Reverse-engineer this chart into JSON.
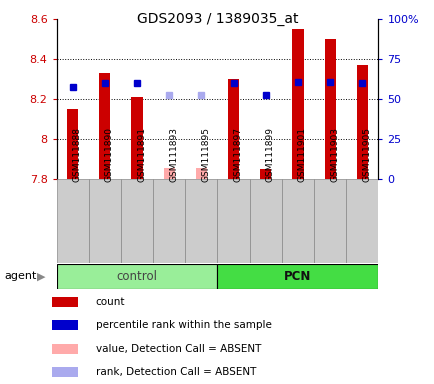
{
  "title": "GDS2093 / 1389035_at",
  "samples": [
    "GSM111888",
    "GSM111890",
    "GSM111891",
    "GSM111893",
    "GSM111895",
    "GSM111897",
    "GSM111899",
    "GSM111901",
    "GSM111903",
    "GSM111905"
  ],
  "count_values": [
    8.15,
    8.33,
    8.21,
    null,
    null,
    8.3,
    7.85,
    8.55,
    8.5,
    8.37
  ],
  "absent_values": [
    null,
    null,
    null,
    7.855,
    7.855,
    null,
    null,
    null,
    null,
    null
  ],
  "rank_values": [
    8.26,
    8.28,
    8.28,
    null,
    null,
    8.28,
    8.22,
    8.285,
    8.285,
    8.28
  ],
  "absent_rank_values": [
    null,
    null,
    null,
    8.22,
    8.22,
    null,
    null,
    null,
    null,
    null
  ],
  "ylim_left": [
    7.8,
    8.6
  ],
  "ylim_right": [
    0,
    100
  ],
  "yticks_left": [
    7.8,
    8.0,
    8.2,
    8.4,
    8.6
  ],
  "yticks_right": [
    0,
    25,
    50,
    75,
    100
  ],
  "ytick_labels_left": [
    "7.8",
    "8",
    "8.2",
    "8.4",
    "8.6"
  ],
  "ytick_labels_right": [
    "0",
    "25",
    "50",
    "75",
    "100%"
  ],
  "color_count": "#cc0000",
  "color_rank": "#0000cc",
  "color_absent_val": "#ffaaaa",
  "color_absent_rank": "#aaaaee",
  "bar_bottom": 7.8,
  "control_color": "#99ee99",
  "pcn_color": "#44dd44",
  "group_label_control": "control",
  "group_label_pcn": "PCN",
  "legend_items": [
    {
      "color": "#cc0000",
      "label": "count"
    },
    {
      "color": "#0000cc",
      "label": "percentile rank within the sample"
    },
    {
      "color": "#ffaaaa",
      "label": "value, Detection Call = ABSENT"
    },
    {
      "color": "#aaaaee",
      "label": "rank, Detection Call = ABSENT"
    }
  ],
  "agent_label": "agent",
  "marker_size": 5,
  "bar_width": 0.35,
  "gridlines": [
    8.0,
    8.2,
    8.4
  ]
}
